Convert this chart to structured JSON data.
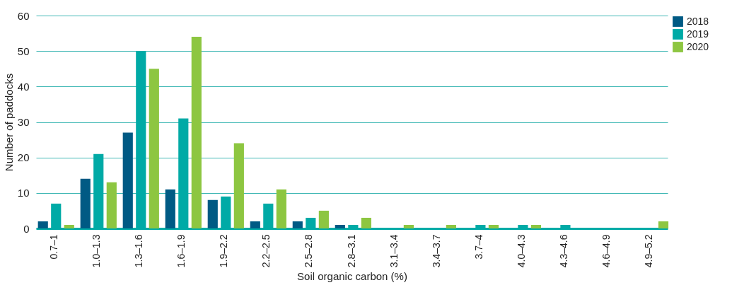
{
  "chart_data": {
    "type": "bar",
    "xlabel": "Soil organic carbon (%)",
    "ylabel": "Number of paddocks",
    "categories": [
      "0.7–1",
      "1.0–1.3",
      "1.3–1.6",
      "1.6–1.9",
      "1.9–2.2",
      "2.2–2.5",
      "2.5–2.8",
      "2.8–3.1",
      "3.1–3.4",
      "3.4–3.7",
      "3.7–4",
      "4.0–4.3",
      "4.3–4.6",
      "4.6–4.9",
      "4.9–5.2"
    ],
    "series": [
      {
        "name": "2018",
        "color": "#005a84",
        "values": [
          2,
          14,
          27,
          11,
          8,
          2,
          2,
          1,
          0,
          0,
          0,
          0,
          0,
          0,
          0
        ]
      },
      {
        "name": "2019",
        "color": "#00aaa6",
        "values": [
          7,
          21,
          50,
          31,
          9,
          7,
          3,
          1,
          0,
          0,
          1,
          1,
          1,
          0,
          0
        ]
      },
      {
        "name": "2020",
        "color": "#8dc641",
        "values": [
          1,
          13,
          45,
          54,
          24,
          11,
          5,
          3,
          1,
          1,
          1,
          1,
          0,
          0,
          2
        ]
      }
    ],
    "ylim": [
      0,
      60
    ],
    "yticks": [
      0,
      10,
      20,
      30,
      40,
      50,
      60
    ],
    "grid": "y",
    "legend": "top right"
  }
}
